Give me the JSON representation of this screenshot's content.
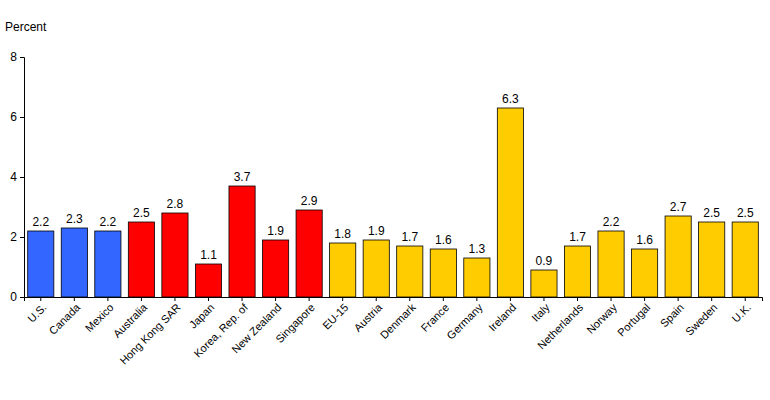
{
  "chart_data": {
    "type": "bar",
    "y_label": "Percent",
    "categories": [
      "U.S.",
      "Canada",
      "Mexico",
      "Australia",
      "Hong Kong SAR",
      "Japan",
      "Korea, Rep. of",
      "New Zealand",
      "Singapore",
      "EU-15",
      "Austria",
      "Denmark",
      "France",
      "Germany",
      "Ireland",
      "Italy",
      "Netherlands",
      "Norway",
      "Portugal",
      "Spain",
      "Sweden",
      "U.K."
    ],
    "values": [
      2.2,
      2.3,
      2.2,
      2.5,
      2.8,
      1.1,
      3.7,
      1.9,
      2.9,
      1.8,
      1.9,
      1.7,
      1.6,
      1.3,
      6.3,
      0.9,
      1.7,
      2.2,
      1.6,
      2.7,
      2.5,
      2.5
    ],
    "colors": [
      "#3366ff",
      "#3366ff",
      "#3366ff",
      "#ff0000",
      "#ff0000",
      "#ff0000",
      "#ff0000",
      "#ff0000",
      "#ff0000",
      "#ffcc00",
      "#ffcc00",
      "#ffcc00",
      "#ffcc00",
      "#ffcc00",
      "#ffcc00",
      "#ffcc00",
      "#ffcc00",
      "#ffcc00",
      "#ffcc00",
      "#ffcc00",
      "#ffcc00",
      "#ffcc00"
    ],
    "ylim": [
      0,
      8
    ],
    "yticks": [
      0,
      2,
      4,
      6,
      8
    ],
    "grid": false,
    "data_labels": true
  }
}
